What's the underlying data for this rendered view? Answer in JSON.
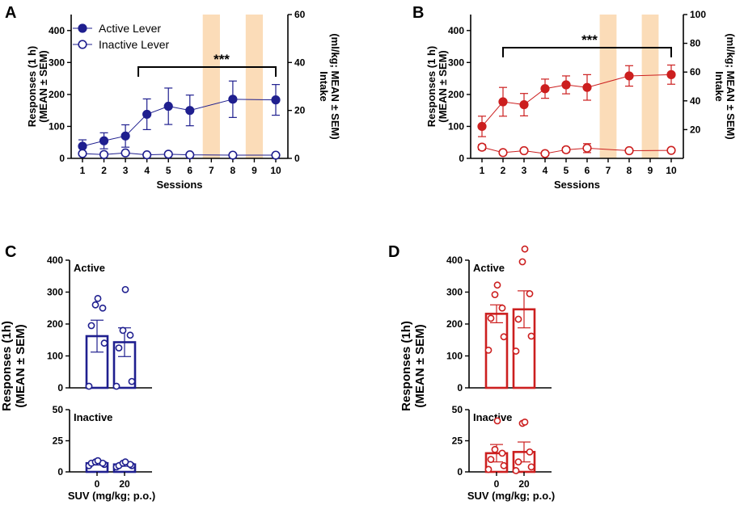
{
  "colors": {
    "blue": "#1f1f8f",
    "red": "#cc1f1f",
    "band": "#fbdcb8",
    "axis": "#000000"
  },
  "chart_data": [
    {
      "panel": "A",
      "type": "line",
      "xlabel": "Sessions",
      "ylabel": [
        "Responses (1 h)",
        "(MEAN ± SEM)"
      ],
      "y2label": [
        "Intake",
        "(ml/kg; MEAN ± SEM)"
      ],
      "ylim": [
        0,
        450
      ],
      "yticks": [
        0,
        100,
        200,
        300,
        400
      ],
      "y2lim": [
        0,
        60
      ],
      "y2ticks": [
        0,
        20,
        40,
        60
      ],
      "x": [
        1,
        2,
        3,
        4,
        5,
        6,
        7,
        8,
        9,
        10
      ],
      "color": "blue",
      "legend": [
        "Active Lever",
        "Inactive Lever"
      ],
      "series": [
        {
          "name": "Active Lever",
          "filled": true,
          "x": [
            1,
            2,
            3,
            4,
            5,
            6,
            8,
            10
          ],
          "values": [
            38,
            55,
            70,
            138,
            163,
            150,
            185,
            183
          ],
          "err": [
            20,
            25,
            35,
            48,
            57,
            48,
            57,
            48
          ]
        },
        {
          "name": "Inactive Lever",
          "filled": false,
          "x": [
            1,
            2,
            3,
            4,
            5,
            6,
            8,
            10
          ],
          "values": [
            15,
            12,
            17,
            11,
            13,
            11,
            10,
            10
          ],
          "err": [
            4,
            3,
            4,
            2,
            3,
            2,
            2,
            2
          ]
        }
      ],
      "bands": [
        [
          6.6,
          7.4
        ],
        [
          8.6,
          9.4
        ]
      ],
      "significance": {
        "label": "***",
        "from": 3.6,
        "to": 10
      }
    },
    {
      "panel": "B",
      "type": "line",
      "xlabel": "Sessions",
      "ylabel": [
        "Responses (1 h)",
        "(MEAN ± SEM)"
      ],
      "y2label": [
        "Intake",
        "(ml/kg; MEAN ± SEM)"
      ],
      "ylim": [
        0,
        450
      ],
      "yticks": [
        0,
        100,
        200,
        300,
        400
      ],
      "y2lim": [
        0,
        100
      ],
      "y2ticks": [
        20,
        40,
        60,
        80,
        100
      ],
      "x": [
        1,
        2,
        3,
        4,
        5,
        6,
        7,
        8,
        9,
        10
      ],
      "color": "red",
      "series": [
        {
          "name": "Active Lever",
          "filled": true,
          "x": [
            1,
            2,
            3,
            4,
            5,
            6,
            8,
            10
          ],
          "values": [
            100,
            177,
            168,
            218,
            230,
            222,
            258,
            262
          ],
          "err": [
            32,
            45,
            35,
            30,
            28,
            40,
            32,
            30
          ]
        },
        {
          "name": "Inactive Lever",
          "filled": false,
          "x": [
            1,
            2,
            3,
            4,
            5,
            6,
            8,
            10
          ],
          "values": [
            35,
            18,
            24,
            15,
            27,
            32,
            24,
            25
          ],
          "err": [
            8,
            4,
            4,
            3,
            7,
            14,
            4,
            4
          ]
        }
      ],
      "bands": [
        [
          6.6,
          7.4
        ],
        [
          8.6,
          9.4
        ]
      ],
      "significance": {
        "label": "***",
        "from": 2,
        "to": 10
      }
    },
    {
      "panel": "C",
      "type": "bar",
      "xlabel": "SUV (mg/kg; p.o.)",
      "ylabel": [
        "Responses (1h)",
        "(MEAN ± SEM)"
      ],
      "categories": [
        "0",
        "20"
      ],
      "color": "blue",
      "sub": [
        {
          "name": "Active",
          "ylim": [
            0,
            400
          ],
          "yticks": [
            0,
            100,
            200,
            300,
            400
          ],
          "values": [
            162,
            143
          ],
          "err": [
            50,
            45
          ],
          "points": [
            [
              5,
              140,
              195,
              250,
              260,
              280
            ],
            [
              5,
              20,
              125,
              165,
              180,
              308
            ]
          ]
        },
        {
          "name": "Inactive",
          "ylim": [
            0,
            50
          ],
          "yticks": [
            0,
            25,
            50
          ],
          "values": [
            7,
            6
          ],
          "err": [
            1.5,
            1.5
          ],
          "points": [
            [
              5,
              6,
              7,
              7,
              8,
              9
            ],
            [
              4,
              5,
              5,
              6,
              7,
              8
            ]
          ]
        }
      ]
    },
    {
      "panel": "D",
      "type": "bar",
      "xlabel": "SUV (mg/kg; p.o.)",
      "ylabel": [
        "Responses (1h)",
        "(MEAN ± SEM)"
      ],
      "categories": [
        "0",
        "20"
      ],
      "color": "red",
      "sub": [
        {
          "name": "Active",
          "ylim": [
            0,
            400
          ],
          "yticks": [
            0,
            100,
            200,
            300,
            400
          ],
          "values": [
            232,
            246
          ],
          "err": [
            28,
            58
          ],
          "points": [
            [
              118,
              160,
              218,
              250,
              292,
              322
            ],
            [
              115,
              162,
              215,
              295,
              395,
              435
            ]
          ]
        },
        {
          "name": "Inactive",
          "ylim": [
            0,
            50
          ],
          "yticks": [
            0,
            25,
            50
          ],
          "values": [
            15,
            16
          ],
          "err": [
            7,
            8
          ],
          "points": [
            [
              2,
              5,
              10,
              15,
              18,
              41
            ],
            [
              1,
              4,
              8,
              16,
              39,
              40
            ]
          ]
        }
      ]
    }
  ]
}
